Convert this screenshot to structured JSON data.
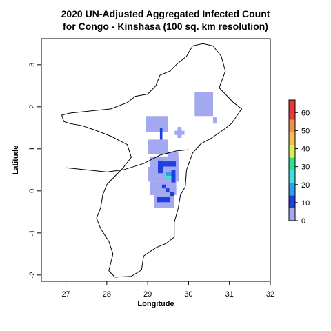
{
  "chart_data": {
    "type": "heatmap",
    "title_lines": [
      "2020 UN-Adjusted Aggregated Infected Count",
      "for Congo - Kinshasa (100 sq. km resolution)"
    ],
    "xlabel": "Longitude",
    "ylabel": "Latitude",
    "xlim": [
      26.4,
      32.0
    ],
    "ylim": [
      -2.15,
      3.62
    ],
    "x_ticks": [
      27,
      28,
      29,
      30,
      31,
      32
    ],
    "y_ticks": [
      -2,
      -1,
      0,
      1,
      2,
      3
    ],
    "legend": {
      "position": "right",
      "range": [
        0,
        67
      ],
      "ticks": [
        0,
        10,
        20,
        30,
        40,
        50,
        60
      ],
      "colors": [
        "#a3a8f0",
        "#1f3fe0",
        "#2f9df0",
        "#3fe0e0",
        "#2ee090",
        "#d8f050",
        "#f6c050",
        "#f0904a",
        "#e83a3a"
      ],
      "breaks": [
        0,
        7,
        14,
        21,
        28,
        35,
        42,
        49,
        56,
        67
      ]
    },
    "grid": false,
    "cell_size_deg": 0.09,
    "cells": [
      {
        "lon": 28.95,
        "lat": 1.4,
        "w": 0.55,
        "h": 0.38,
        "value": 3
      },
      {
        "lon": 29.3,
        "lat": 1.2,
        "w": 0.06,
        "h": 0.3,
        "value": 10
      },
      {
        "lon": 29.19,
        "lat": 1.12,
        "w": 0.14,
        "h": 0.08,
        "value": 10
      },
      {
        "lon": 29.73,
        "lat": 1.26,
        "w": 0.1,
        "h": 0.26,
        "value": 3
      },
      {
        "lon": 29.66,
        "lat": 1.33,
        "w": 0.24,
        "h": 0.1,
        "value": 3
      },
      {
        "lon": 30.15,
        "lat": 1.78,
        "w": 0.45,
        "h": 0.57,
        "value": 3
      },
      {
        "lon": 30.6,
        "lat": 1.6,
        "w": 0.1,
        "h": 0.15,
        "value": 3
      },
      {
        "lon": 29.0,
        "lat": 0.87,
        "w": 0.5,
        "h": 0.35,
        "value": 3
      },
      {
        "lon": 29.05,
        "lat": 0.52,
        "w": 0.72,
        "h": 0.3,
        "value": 3
      },
      {
        "lon": 29.0,
        "lat": 0.22,
        "w": 0.77,
        "h": 0.35,
        "value": 3
      },
      {
        "lon": 29.05,
        "lat": -0.1,
        "w": 0.65,
        "h": 0.32,
        "value": 3
      },
      {
        "lon": 29.15,
        "lat": -0.4,
        "w": 0.5,
        "h": 0.3,
        "value": 3
      },
      {
        "lon": 29.5,
        "lat": 0.8,
        "w": 0.25,
        "h": 0.12,
        "value": 3
      },
      {
        "lon": 29.33,
        "lat": 0.58,
        "w": 0.36,
        "h": 0.12,
        "value": 10
      },
      {
        "lon": 29.25,
        "lat": 0.42,
        "w": 0.12,
        "h": 0.3,
        "value": 10
      },
      {
        "lon": 29.45,
        "lat": 0.33,
        "w": 0.2,
        "h": 0.12,
        "value": 18
      },
      {
        "lon": 29.43,
        "lat": 0.28,
        "w": 0.18,
        "h": 0.08,
        "value": 25
      },
      {
        "lon": 29.58,
        "lat": 0.2,
        "w": 0.1,
        "h": 0.3,
        "value": 10
      },
      {
        "lon": 29.35,
        "lat": 0.06,
        "w": 0.09,
        "h": 0.09,
        "value": 10
      },
      {
        "lon": 29.45,
        "lat": -0.02,
        "w": 0.08,
        "h": 0.08,
        "value": 10
      },
      {
        "lon": 29.55,
        "lat": -0.12,
        "w": 0.1,
        "h": 0.1,
        "value": 10
      },
      {
        "lon": 29.22,
        "lat": -0.27,
        "w": 0.32,
        "h": 0.12,
        "value": 10
      }
    ]
  }
}
